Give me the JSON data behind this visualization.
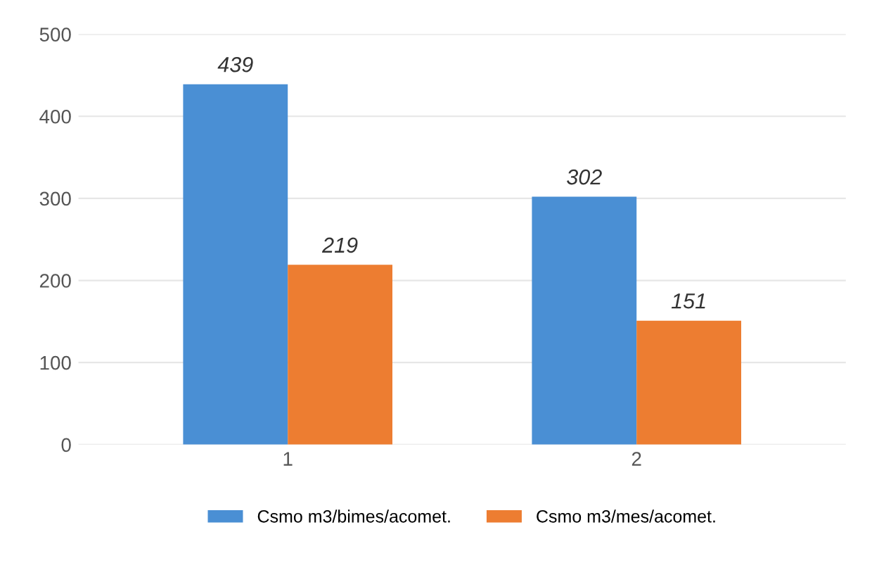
{
  "chart_data": {
    "type": "bar",
    "categories": [
      "1",
      "2"
    ],
    "series": [
      {
        "name": "Csmo m3/bimes/acomet.",
        "color": "#4a8fd4",
        "values": [
          439,
          302
        ]
      },
      {
        "name": "Csmo m3/mes/acomet.",
        "color": "#ed7d31",
        "values": [
          219,
          151
        ]
      }
    ],
    "ylim": [
      0,
      500
    ],
    "yticks": [
      0,
      100,
      200,
      300,
      400,
      500
    ],
    "grid": "y",
    "legend": "bottom",
    "data_labels": true
  }
}
